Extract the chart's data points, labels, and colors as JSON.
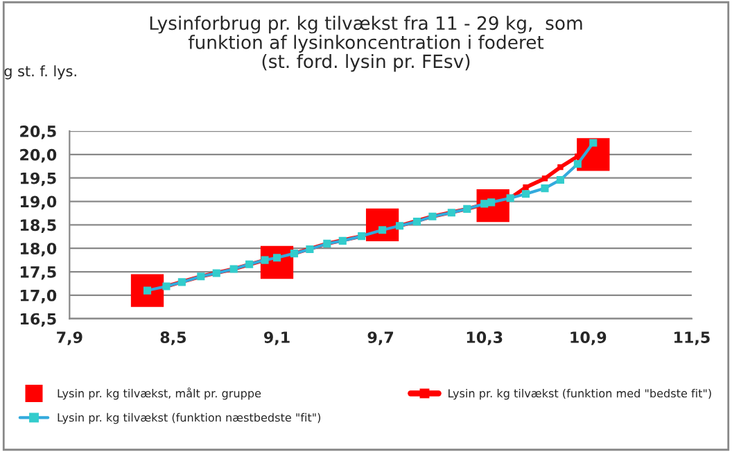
{
  "chart_data": {
    "type": "line",
    "title": "Lysinforbrug pr. kg tilvækst fra 11 - 29 kg,  som\nfunktion af lysinkoncentration i foderet\n(st. ford. lysin pr. FEsv)",
    "ylabel": "g st. f. lys.",
    "xlim": [
      7.9,
      11.5
    ],
    "xticks": [
      {
        "value": 7.9,
        "label": "7,9"
      },
      {
        "value": 8.5,
        "label": "8,5"
      },
      {
        "value": 9.1,
        "label": "9,1"
      },
      {
        "value": 9.7,
        "label": "9,7"
      },
      {
        "value": 10.3,
        "label": "10,3"
      },
      {
        "value": 10.9,
        "label": "10,9"
      },
      {
        "value": 11.5,
        "label": "11,5"
      }
    ],
    "ylim": [
      16.5,
      20.5
    ],
    "yticks": [
      {
        "value": 16.5,
        "label": "16,5"
      },
      {
        "value": 17.0,
        "label": "17,0"
      },
      {
        "value": 17.5,
        "label": "17,5"
      },
      {
        "value": 18.0,
        "label": "18,0"
      },
      {
        "value": 18.5,
        "label": "18,5"
      },
      {
        "value": 19.0,
        "label": "19,0"
      },
      {
        "value": 19.5,
        "label": "19,5"
      },
      {
        "value": 20.0,
        "label": "20,0"
      },
      {
        "value": 20.5,
        "label": "20,5"
      }
    ],
    "grid": "y",
    "legend": "bottom",
    "series": [
      {
        "name": "Lysin pr. kg tilvækst, målt pr. gruppe",
        "type": "scatter",
        "marker": "square",
        "color": "#ff0000",
        "x": [
          8.35,
          9.1,
          9.71,
          10.35,
          10.93
        ],
        "values": [
          17.1,
          17.7,
          18.5,
          18.91,
          20.0
        ]
      },
      {
        "name": "Lysin pr. kg tilvækst (funktion med \"bedste fit\")",
        "marker": "square",
        "color": "#ff0000",
        "x": [
          8.46,
          8.66,
          8.85,
          9.03,
          9.2,
          9.39,
          9.59,
          9.81,
          10.0,
          10.2,
          10.34,
          10.45,
          10.54,
          10.65,
          10.74,
          10.84,
          10.88
        ],
        "values": [
          17.19,
          17.4,
          17.56,
          17.75,
          17.89,
          18.1,
          18.26,
          18.48,
          18.68,
          18.84,
          18.98,
          19.07,
          19.3,
          19.49,
          19.73,
          19.96,
          20.0
        ]
      },
      {
        "name": "Lysin pr. kg tilvækst (funktion næstbedste \"fit\")",
        "marker": "square",
        "color": "#33aadd",
        "x": [
          8.35,
          8.46,
          8.55,
          8.66,
          8.75,
          8.85,
          8.94,
          9.03,
          9.1,
          9.2,
          9.29,
          9.39,
          9.48,
          9.59,
          9.71,
          9.81,
          9.91,
          10.0,
          10.11,
          10.2,
          10.3,
          10.34,
          10.45,
          10.54,
          10.65,
          10.74,
          10.84,
          10.93
        ],
        "values": [
          17.1,
          17.19,
          17.28,
          17.4,
          17.47,
          17.56,
          17.66,
          17.75,
          17.8,
          17.89,
          17.98,
          18.1,
          18.16,
          18.26,
          18.39,
          18.48,
          18.57,
          18.68,
          18.76,
          18.84,
          18.95,
          18.98,
          19.07,
          19.16,
          19.28,
          19.46,
          19.8,
          20.25
        ]
      }
    ]
  }
}
